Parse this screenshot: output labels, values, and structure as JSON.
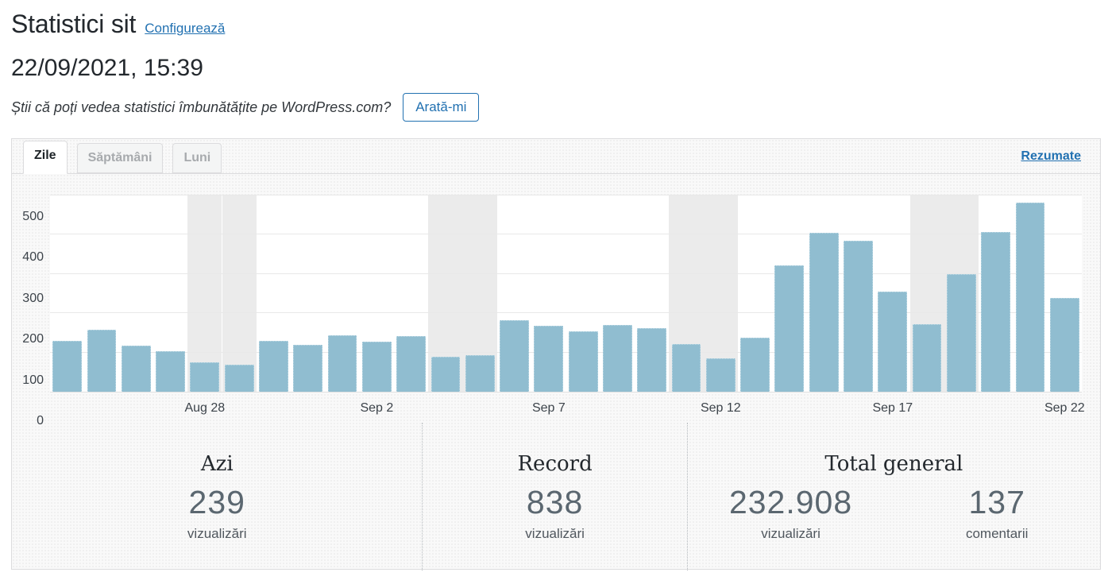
{
  "header": {
    "title": "Statistici sit",
    "configure_label": "Configurează"
  },
  "datetime": "22/09/2021, 15:39",
  "promo": {
    "text": "Știi că poți vedea statistici îmbunătățite pe WordPress.com?",
    "button_label": "Arată-mi"
  },
  "tabs": {
    "items": [
      {
        "label": "Zile",
        "active": true
      },
      {
        "label": "Săptămâni",
        "active": false
      },
      {
        "label": "Luni",
        "active": false
      }
    ],
    "summaries_label": "Rezumate"
  },
  "chart_data": {
    "type": "bar",
    "title": "",
    "xlabel": "",
    "ylabel": "",
    "ylim": [
      0,
      500
    ],
    "yticks": [
      0,
      100,
      200,
      300,
      400,
      500
    ],
    "grid": true,
    "legend": "none",
    "categories": [
      "Aug 24",
      "Aug 25",
      "Aug 26",
      "Aug 27",
      "Aug 28",
      "Aug 29",
      "Aug 30",
      "Aug 31",
      "Sep 1",
      "Sep 2",
      "Sep 3",
      "Sep 4",
      "Sep 5",
      "Sep 6",
      "Sep 7",
      "Sep 8",
      "Sep 9",
      "Sep 10",
      "Sep 11",
      "Sep 12",
      "Sep 13",
      "Sep 14",
      "Sep 15",
      "Sep 16",
      "Sep 17",
      "Sep 18",
      "Sep 19",
      "Sep 20",
      "Sep 21",
      "Sep 22"
    ],
    "values": [
      130,
      158,
      118,
      104,
      75,
      69,
      130,
      120,
      144,
      128,
      142,
      89,
      94,
      182,
      168,
      153,
      171,
      162,
      122,
      86,
      138,
      322,
      404,
      385,
      255,
      173,
      300,
      407,
      482,
      239
    ],
    "weekend_indices": [
      4,
      5,
      11,
      12,
      18,
      19,
      25,
      26
    ],
    "x_tick_indices": [
      4,
      9,
      14,
      19,
      24,
      29
    ],
    "x_tick_labels": [
      "Aug 28",
      "Sep 2",
      "Sep 7",
      "Sep 12",
      "Sep 17",
      "Sep 22"
    ]
  },
  "stats": {
    "sections": [
      {
        "heading": "Azi",
        "items": [
          {
            "value": "239",
            "label": "vizualizări"
          }
        ]
      },
      {
        "heading": "Record",
        "items": [
          {
            "value": "838",
            "label": "vizualizări"
          }
        ]
      },
      {
        "heading": "Total general",
        "items": [
          {
            "value": "232.908",
            "label": "vizualizări"
          },
          {
            "value": "137",
            "label": "comentarii"
          }
        ]
      }
    ]
  },
  "colors": {
    "accent": "#2271b1",
    "bar": "#90bdd0",
    "bar_border": "#c2dce7",
    "weekend_band": "#ebebeb"
  }
}
